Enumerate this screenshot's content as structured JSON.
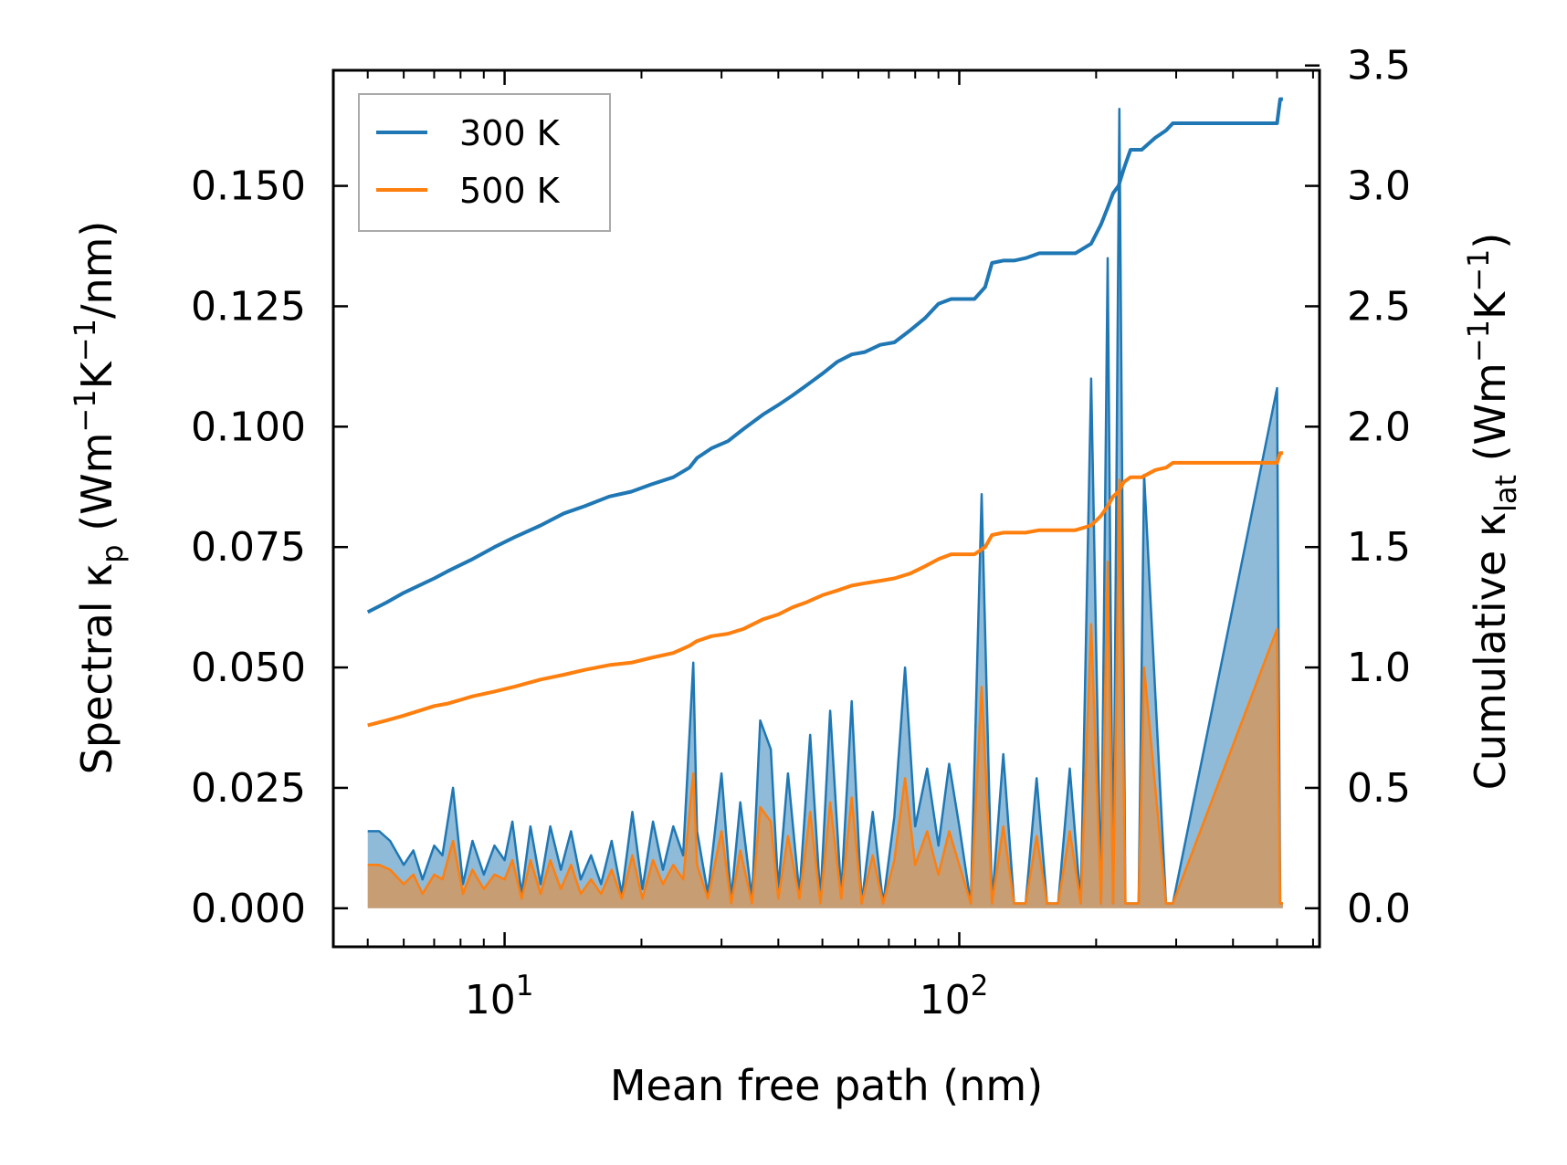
{
  "chart_data": {
    "type": "line",
    "xlabel": "Mean free path (nm)",
    "xscale": "log",
    "xlim": [
      4.2,
      620
    ],
    "x_ticks": [
      {
        "value": 10,
        "base": "10",
        "exp": "1"
      },
      {
        "value": 100,
        "base": "10",
        "exp": "2"
      }
    ],
    "ylabel_left": {
      "base": "Spectral κ",
      "sub": "p",
      "units_open": " (Wm",
      "sup1": "−1",
      "mid": "K",
      "sup2": "−1",
      "units_close": "/nm)"
    },
    "ylabel_right": {
      "base": "Cumulative κ",
      "sub": "lat",
      "units_open": " (Wm",
      "sup1": "−1",
      "mid": "K",
      "sup2": "−1",
      "units_close": ")"
    },
    "ylim_left": [
      -0.008,
      0.174
    ],
    "ylim_right": [
      -0.16,
      3.48
    ],
    "y_ticks_left": [
      "0.000",
      "0.025",
      "0.050",
      "0.075",
      "0.100",
      "0.125",
      "0.150"
    ],
    "y_ticks_right": [
      "0.0",
      "0.5",
      "1.0",
      "1.5",
      "2.0",
      "2.5",
      "3.0",
      "3.5"
    ],
    "legend": {
      "position": "upper-left",
      "entries": [
        "300 K",
        "500 K"
      ]
    },
    "colors": {
      "300 K": "#1f77b4",
      "500 K": "#ff7f0e"
    },
    "spectral_x": [
      5.0,
      5.3,
      5.6,
      6.0,
      6.3,
      6.6,
      7.0,
      7.3,
      7.7,
      8.1,
      8.5,
      9.0,
      9.5,
      10.0,
      10.4,
      10.9,
      11.4,
      12.0,
      12.6,
      13.3,
      14.0,
      14.7,
      15.5,
      16.3,
      17.2,
      18.1,
      19.1,
      20.1,
      21.2,
      22.3,
      23.5,
      24.7,
      26.0,
      26.5,
      28.0,
      30.0,
      31.5,
      33.0,
      35.0,
      36.5,
      38.5,
      40.0,
      42.0,
      44.5,
      47.0,
      49.5,
      52.0,
      55.0,
      58.0,
      61.0,
      64.5,
      68.0,
      72.0,
      76.0,
      80.0,
      85.0,
      90.0,
      95.0,
      100.0,
      106.0,
      112.0,
      118.0,
      125.0,
      132.0,
      140.0,
      148.0,
      156.0,
      165.0,
      175.0,
      185.0,
      195.0,
      205.0,
      212.0,
      218.0,
      225.0,
      232.0,
      240.0,
      248.0,
      255.0,
      285.0,
      290.0,
      295.0,
      500.0,
      508.0,
      515.0
    ],
    "spectral_300K": [
      0.016,
      0.016,
      0.014,
      0.009,
      0.012,
      0.006,
      0.013,
      0.011,
      0.025,
      0.005,
      0.014,
      0.007,
      0.013,
      0.01,
      0.018,
      0.003,
      0.017,
      0.005,
      0.017,
      0.008,
      0.016,
      0.006,
      0.011,
      0.005,
      0.014,
      0.003,
      0.02,
      0.004,
      0.018,
      0.008,
      0.017,
      0.011,
      0.051,
      0.016,
      0.003,
      0.028,
      0.002,
      0.022,
      0.002,
      0.039,
      0.033,
      0.004,
      0.028,
      0.003,
      0.036,
      0.002,
      0.041,
      0.003,
      0.043,
      0.001,
      0.02,
      0.001,
      0.019,
      0.05,
      0.017,
      0.029,
      0.013,
      0.03,
      0.017,
      0.001,
      0.086,
      0.001,
      0.032,
      0.001,
      0.001,
      0.027,
      0.001,
      0.001,
      0.029,
      0.001,
      0.11,
      0.001,
      0.135,
      0.001,
      0.166,
      0.001,
      0.001,
      0.001,
      0.09,
      0.001,
      0.001,
      0.001,
      0.108,
      0.001,
      0.001
    ],
    "spectral_500K": [
      0.009,
      0.009,
      0.008,
      0.005,
      0.007,
      0.003,
      0.007,
      0.006,
      0.014,
      0.003,
      0.008,
      0.004,
      0.007,
      0.006,
      0.01,
      0.002,
      0.01,
      0.003,
      0.01,
      0.004,
      0.009,
      0.003,
      0.006,
      0.003,
      0.008,
      0.002,
      0.011,
      0.002,
      0.01,
      0.005,
      0.009,
      0.006,
      0.028,
      0.009,
      0.002,
      0.016,
      0.001,
      0.012,
      0.001,
      0.021,
      0.018,
      0.002,
      0.015,
      0.002,
      0.02,
      0.001,
      0.022,
      0.002,
      0.023,
      0.001,
      0.011,
      0.001,
      0.01,
      0.027,
      0.009,
      0.016,
      0.007,
      0.016,
      0.009,
      0.001,
      0.046,
      0.001,
      0.017,
      0.001,
      0.001,
      0.015,
      0.001,
      0.001,
      0.016,
      0.001,
      0.059,
      0.001,
      0.072,
      0.001,
      0.089,
      0.001,
      0.001,
      0.001,
      0.05,
      0.001,
      0.001,
      0.001,
      0.058,
      0.001,
      0.001
    ],
    "cumulative_x": [
      5.0,
      5.5,
      6.0,
      7.0,
      7.5,
      8.5,
      9.5,
      10.5,
      12.0,
      13.5,
      15.0,
      17.0,
      19.0,
      21.0,
      23.5,
      25.5,
      26.5,
      28.5,
      31.0,
      33.5,
      37.0,
      40.0,
      43.0,
      46.0,
      50.0,
      54.0,
      58.0,
      62.0,
      67.0,
      72.0,
      78.0,
      84.0,
      90.0,
      96.0,
      102.0,
      108.0,
      114.0,
      118.0,
      125.0,
      132.0,
      140.0,
      150.0,
      160.0,
      168.0,
      180.0,
      195.0,
      205.0,
      212.0,
      218.0,
      224.0,
      230.0,
      238.0,
      245.0,
      252.0,
      270.0,
      285.0,
      295.0,
      400.0,
      500.0,
      508.0,
      515.0
    ],
    "cumulative_300K": [
      1.23,
      1.27,
      1.31,
      1.37,
      1.4,
      1.45,
      1.5,
      1.54,
      1.59,
      1.64,
      1.67,
      1.71,
      1.73,
      1.76,
      1.79,
      1.83,
      1.87,
      1.91,
      1.94,
      1.99,
      2.05,
      2.09,
      2.13,
      2.17,
      2.22,
      2.27,
      2.3,
      2.31,
      2.34,
      2.35,
      2.4,
      2.45,
      2.51,
      2.53,
      2.53,
      2.53,
      2.58,
      2.68,
      2.69,
      2.69,
      2.7,
      2.72,
      2.72,
      2.72,
      2.72,
      2.76,
      2.84,
      2.91,
      2.97,
      3.0,
      3.07,
      3.15,
      3.15,
      3.15,
      3.2,
      3.23,
      3.26,
      3.26,
      3.26,
      3.36,
      3.36
    ],
    "cumulative_500K": [
      0.76,
      0.78,
      0.8,
      0.84,
      0.85,
      0.88,
      0.9,
      0.92,
      0.95,
      0.97,
      0.99,
      1.01,
      1.02,
      1.04,
      1.06,
      1.09,
      1.11,
      1.13,
      1.14,
      1.16,
      1.2,
      1.22,
      1.25,
      1.27,
      1.3,
      1.32,
      1.34,
      1.35,
      1.36,
      1.37,
      1.39,
      1.42,
      1.45,
      1.47,
      1.47,
      1.47,
      1.5,
      1.55,
      1.56,
      1.56,
      1.56,
      1.57,
      1.57,
      1.57,
      1.57,
      1.59,
      1.63,
      1.67,
      1.71,
      1.73,
      1.77,
      1.79,
      1.79,
      1.79,
      1.82,
      1.83,
      1.85,
      1.85,
      1.85,
      1.89,
      1.89
    ]
  }
}
